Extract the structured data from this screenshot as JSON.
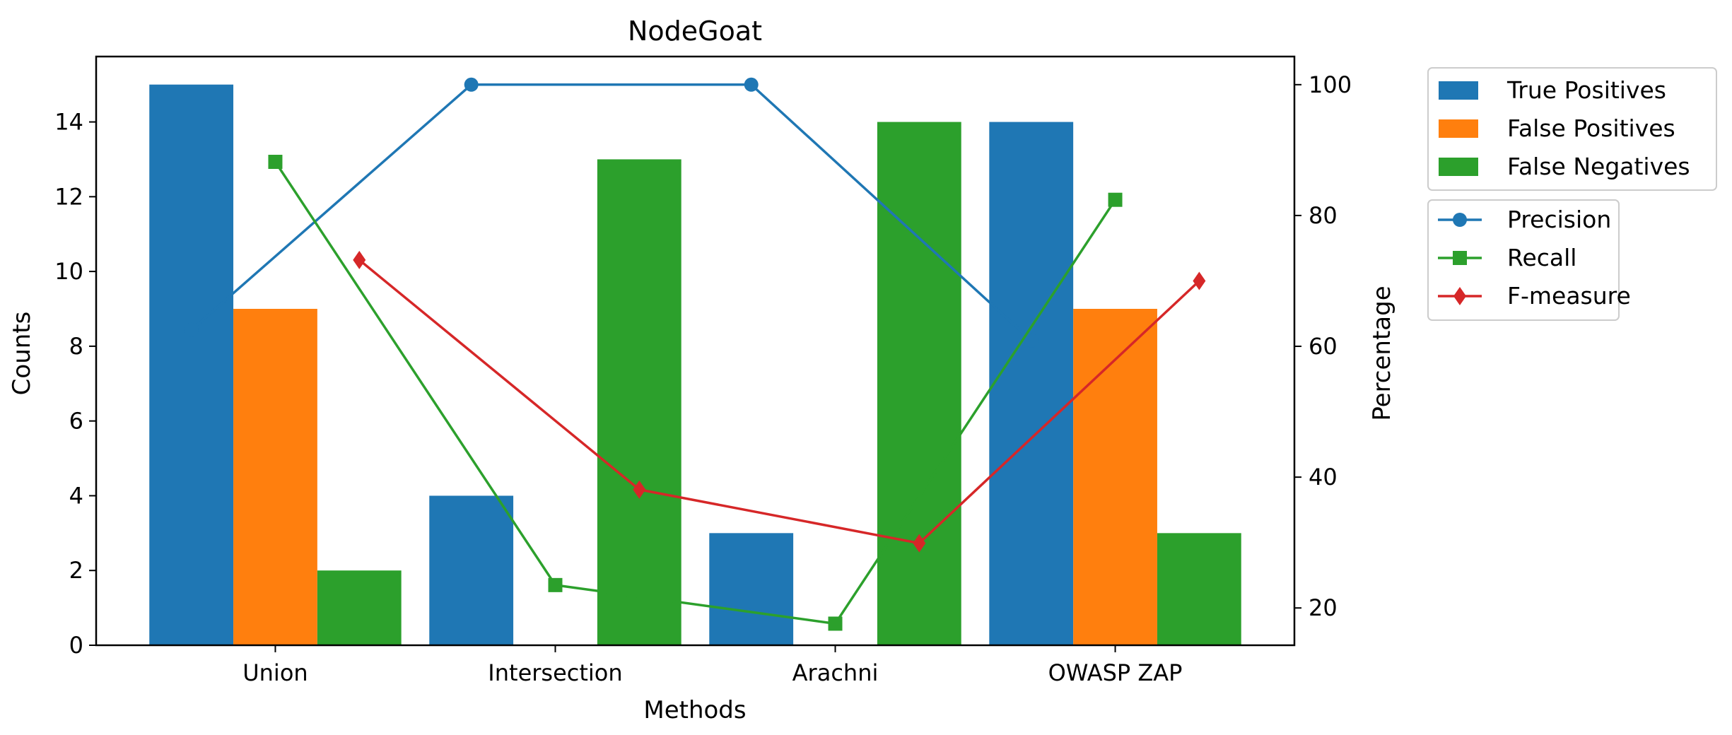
{
  "chart_data": {
    "type": "bar",
    "title": "NodeGoat",
    "xlabel": "Methods",
    "ylabel": "Counts",
    "y2label": "Percentage",
    "categories": [
      "Union",
      "Intersection",
      "Arachni",
      "OWASP ZAP"
    ],
    "ylim": [
      0,
      15.75
    ],
    "yticks": [
      0,
      2,
      4,
      6,
      8,
      10,
      12,
      14
    ],
    "y2lim": [
      14.3,
      104.3
    ],
    "y2ticks": [
      20,
      40,
      60,
      80,
      100
    ],
    "grid": false,
    "series": [
      {
        "name": "True Positives",
        "kind": "bar",
        "axis": "left",
        "color": "#1f77b4",
        "values": [
          15,
          4,
          3,
          14
        ]
      },
      {
        "name": "False Positives",
        "kind": "bar",
        "axis": "left",
        "color": "#ff7f0e",
        "values": [
          9,
          0,
          0,
          9
        ]
      },
      {
        "name": "False Negatives",
        "kind": "bar",
        "axis": "left",
        "color": "#2ca02c",
        "values": [
          2,
          13,
          14,
          3
        ]
      }
    ],
    "lines": [
      {
        "name": "Precision",
        "kind": "line",
        "axis": "right",
        "marker": "circle",
        "color": "#1f77b4",
        "values": [
          62.5,
          100,
          100,
          60.9
        ]
      },
      {
        "name": "Recall",
        "kind": "line",
        "axis": "right",
        "marker": "square",
        "color": "#2ca02c",
        "values": [
          88.2,
          23.5,
          17.6,
          82.4
        ]
      },
      {
        "name": "F-measure",
        "kind": "line",
        "axis": "right",
        "marker": "diamond",
        "color": "#d62728",
        "values": [
          73.2,
          38.1,
          29.9,
          70.0
        ]
      }
    ],
    "legend": {
      "bars_position": "upper-left-outside",
      "lines_position": "below-bars-legend"
    }
  }
}
